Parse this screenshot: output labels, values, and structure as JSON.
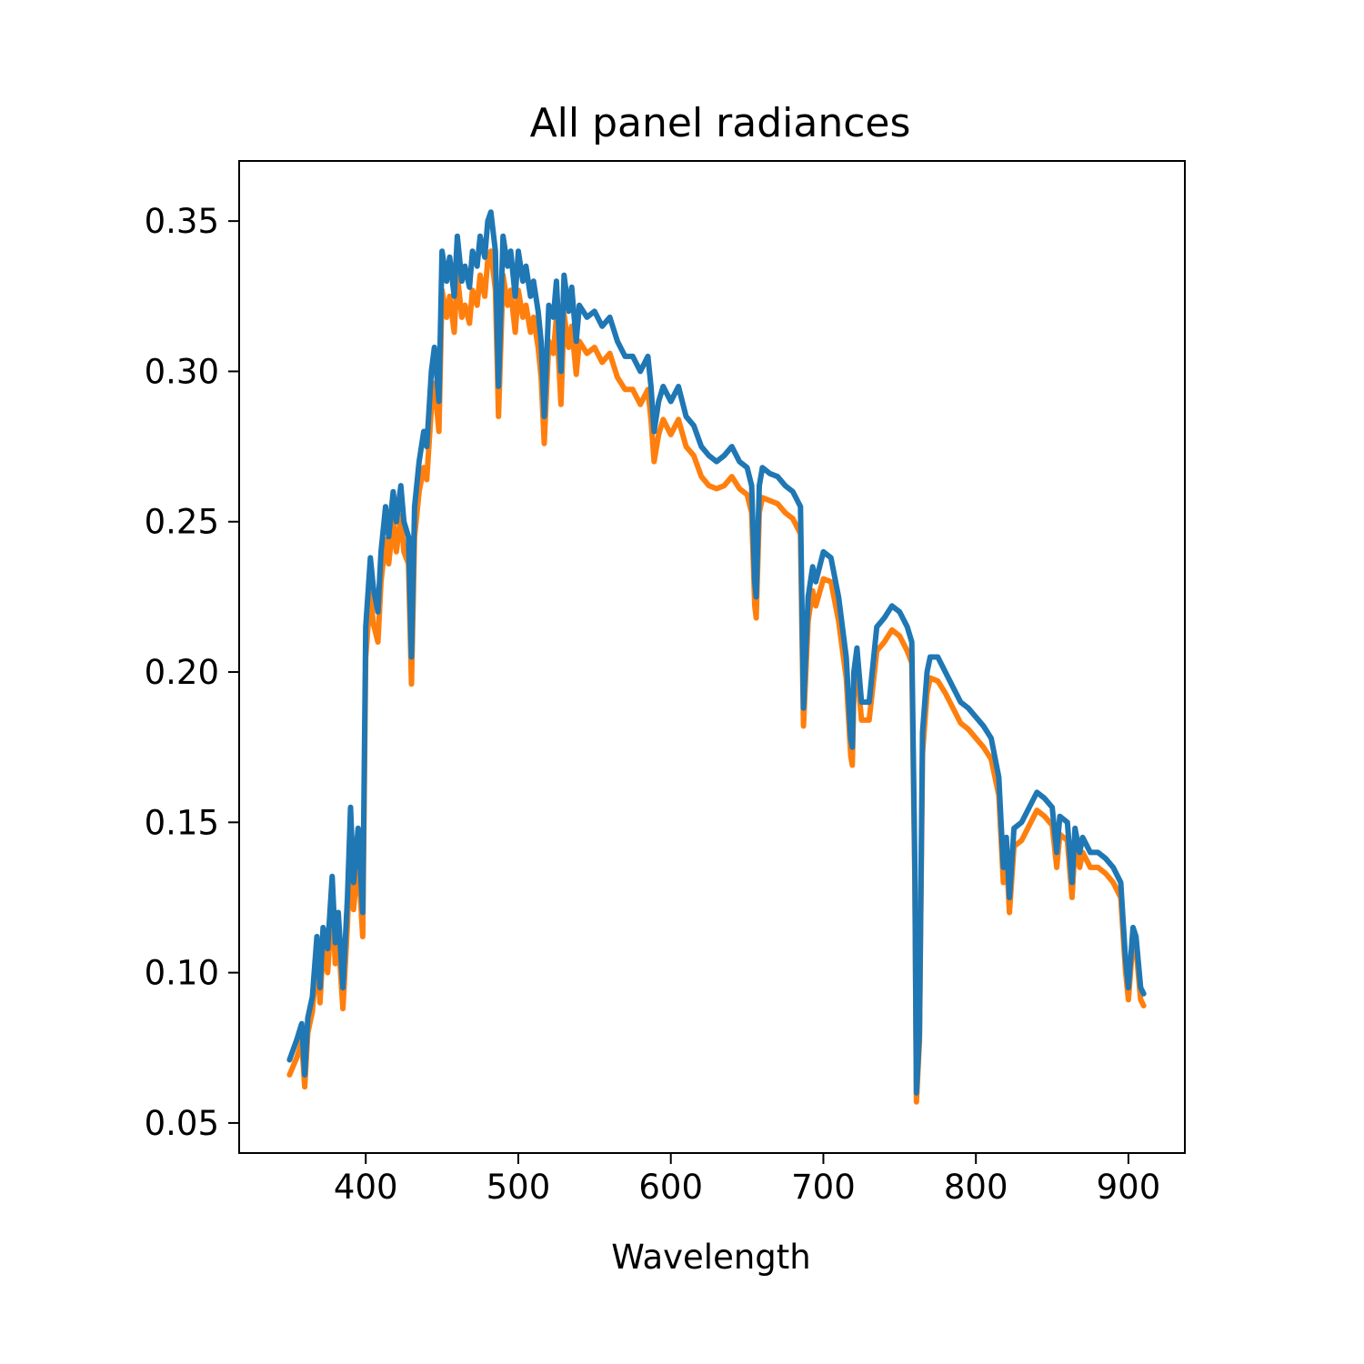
{
  "chart_data": {
    "type": "line",
    "title": "All panel radiances",
    "xlabel": "Wavelength",
    "ylabel": "",
    "xlim": [
      317,
      937
    ],
    "ylim": [
      0.04,
      0.37
    ],
    "xticks": [
      400,
      500,
      600,
      700,
      800,
      900
    ],
    "yticks": [
      0.05,
      0.1,
      0.15,
      0.2,
      0.25,
      0.3,
      0.35
    ],
    "grid": false,
    "legend": "none",
    "x": [
      350,
      355,
      358,
      360,
      362,
      365,
      368,
      370,
      372,
      375,
      378,
      380,
      382,
      385,
      388,
      390,
      392,
      395,
      398,
      400,
      403,
      405,
      408,
      410,
      413,
      415,
      418,
      420,
      423,
      425,
      428,
      430,
      432,
      435,
      438,
      440,
      443,
      445,
      448,
      450,
      453,
      455,
      458,
      460,
      463,
      465,
      468,
      470,
      473,
      475,
      478,
      480,
      482,
      485,
      487,
      490,
      493,
      495,
      498,
      500,
      503,
      505,
      508,
      510,
      513,
      515,
      517,
      520,
      523,
      525,
      528,
      530,
      533,
      535,
      538,
      540,
      545,
      550,
      555,
      560,
      565,
      570,
      575,
      580,
      585,
      587,
      589,
      592,
      595,
      600,
      605,
      610,
      615,
      620,
      625,
      630,
      635,
      640,
      645,
      650,
      653,
      655,
      656,
      658,
      660,
      665,
      670,
      675,
      680,
      685,
      686,
      687,
      690,
      693,
      695,
      700,
      705,
      710,
      715,
      718,
      719,
      720,
      722,
      725,
      730,
      735,
      740,
      745,
      750,
      755,
      758,
      760,
      761,
      763,
      765,
      768,
      770,
      775,
      780,
      785,
      790,
      795,
      800,
      805,
      810,
      815,
      818,
      820,
      822,
      825,
      830,
      835,
      840,
      845,
      850,
      853,
      855,
      860,
      863,
      865,
      868,
      870,
      875,
      880,
      885,
      890,
      895,
      898,
      900,
      903,
      905,
      908,
      910
    ],
    "series": [
      {
        "color": "#1f77b4",
        "values": [
          0.071,
          0.078,
          0.083,
          0.066,
          0.085,
          0.092,
          0.112,
          0.095,
          0.115,
          0.108,
          0.132,
          0.11,
          0.12,
          0.095,
          0.125,
          0.155,
          0.13,
          0.148,
          0.12,
          0.215,
          0.238,
          0.228,
          0.22,
          0.24,
          0.255,
          0.245,
          0.26,
          0.25,
          0.262,
          0.25,
          0.245,
          0.205,
          0.255,
          0.27,
          0.28,
          0.275,
          0.3,
          0.308,
          0.29,
          0.34,
          0.33,
          0.338,
          0.325,
          0.345,
          0.33,
          0.335,
          0.328,
          0.34,
          0.335,
          0.345,
          0.338,
          0.35,
          0.353,
          0.34,
          0.295,
          0.345,
          0.335,
          0.34,
          0.325,
          0.34,
          0.33,
          0.335,
          0.325,
          0.33,
          0.32,
          0.31,
          0.285,
          0.322,
          0.318,
          0.33,
          0.3,
          0.332,
          0.32,
          0.328,
          0.31,
          0.322,
          0.318,
          0.32,
          0.315,
          0.318,
          0.31,
          0.305,
          0.305,
          0.3,
          0.305,
          0.295,
          0.28,
          0.29,
          0.295,
          0.29,
          0.295,
          0.285,
          0.282,
          0.275,
          0.272,
          0.27,
          0.272,
          0.275,
          0.27,
          0.268,
          0.262,
          0.23,
          0.225,
          0.262,
          0.268,
          0.266,
          0.265,
          0.262,
          0.26,
          0.255,
          0.22,
          0.188,
          0.225,
          0.235,
          0.23,
          0.24,
          0.238,
          0.225,
          0.205,
          0.178,
          0.175,
          0.2,
          0.208,
          0.19,
          0.19,
          0.215,
          0.218,
          0.222,
          0.22,
          0.215,
          0.21,
          0.135,
          0.06,
          0.08,
          0.18,
          0.2,
          0.205,
          0.205,
          0.2,
          0.195,
          0.19,
          0.188,
          0.185,
          0.182,
          0.178,
          0.165,
          0.135,
          0.145,
          0.125,
          0.148,
          0.15,
          0.155,
          0.16,
          0.158,
          0.155,
          0.14,
          0.152,
          0.15,
          0.13,
          0.148,
          0.14,
          0.145,
          0.14,
          0.14,
          0.138,
          0.135,
          0.13,
          0.105,
          0.095,
          0.115,
          0.112,
          0.095,
          0.093
        ]
      },
      {
        "color": "#ff7f0e",
        "values": [
          0.066,
          0.072,
          0.077,
          0.062,
          0.08,
          0.087,
          0.105,
          0.09,
          0.108,
          0.1,
          0.124,
          0.103,
          0.112,
          0.088,
          0.116,
          0.145,
          0.121,
          0.138,
          0.112,
          0.205,
          0.226,
          0.216,
          0.21,
          0.23,
          0.244,
          0.236,
          0.25,
          0.24,
          0.252,
          0.24,
          0.236,
          0.196,
          0.245,
          0.26,
          0.268,
          0.264,
          0.288,
          0.296,
          0.28,
          0.327,
          0.318,
          0.325,
          0.313,
          0.332,
          0.318,
          0.322,
          0.316,
          0.327,
          0.322,
          0.332,
          0.325,
          0.337,
          0.34,
          0.327,
          0.285,
          0.332,
          0.322,
          0.327,
          0.313,
          0.327,
          0.318,
          0.322,
          0.313,
          0.318,
          0.308,
          0.298,
          0.276,
          0.31,
          0.306,
          0.318,
          0.289,
          0.319,
          0.308,
          0.315,
          0.299,
          0.31,
          0.306,
          0.308,
          0.303,
          0.306,
          0.298,
          0.294,
          0.294,
          0.289,
          0.294,
          0.284,
          0.27,
          0.279,
          0.284,
          0.279,
          0.284,
          0.275,
          0.272,
          0.265,
          0.262,
          0.261,
          0.262,
          0.265,
          0.261,
          0.259,
          0.253,
          0.222,
          0.218,
          0.253,
          0.258,
          0.257,
          0.256,
          0.253,
          0.251,
          0.246,
          0.212,
          0.182,
          0.217,
          0.227,
          0.222,
          0.231,
          0.23,
          0.217,
          0.198,
          0.172,
          0.169,
          0.193,
          0.201,
          0.184,
          0.184,
          0.207,
          0.21,
          0.214,
          0.212,
          0.207,
          0.203,
          0.13,
          0.057,
          0.077,
          0.173,
          0.193,
          0.198,
          0.197,
          0.193,
          0.188,
          0.183,
          0.181,
          0.178,
          0.175,
          0.171,
          0.159,
          0.13,
          0.14,
          0.12,
          0.142,
          0.144,
          0.149,
          0.154,
          0.152,
          0.149,
          0.135,
          0.146,
          0.144,
          0.125,
          0.142,
          0.135,
          0.14,
          0.135,
          0.135,
          0.133,
          0.13,
          0.125,
          0.101,
          0.091,
          0.111,
          0.108,
          0.091,
          0.089
        ]
      }
    ]
  }
}
